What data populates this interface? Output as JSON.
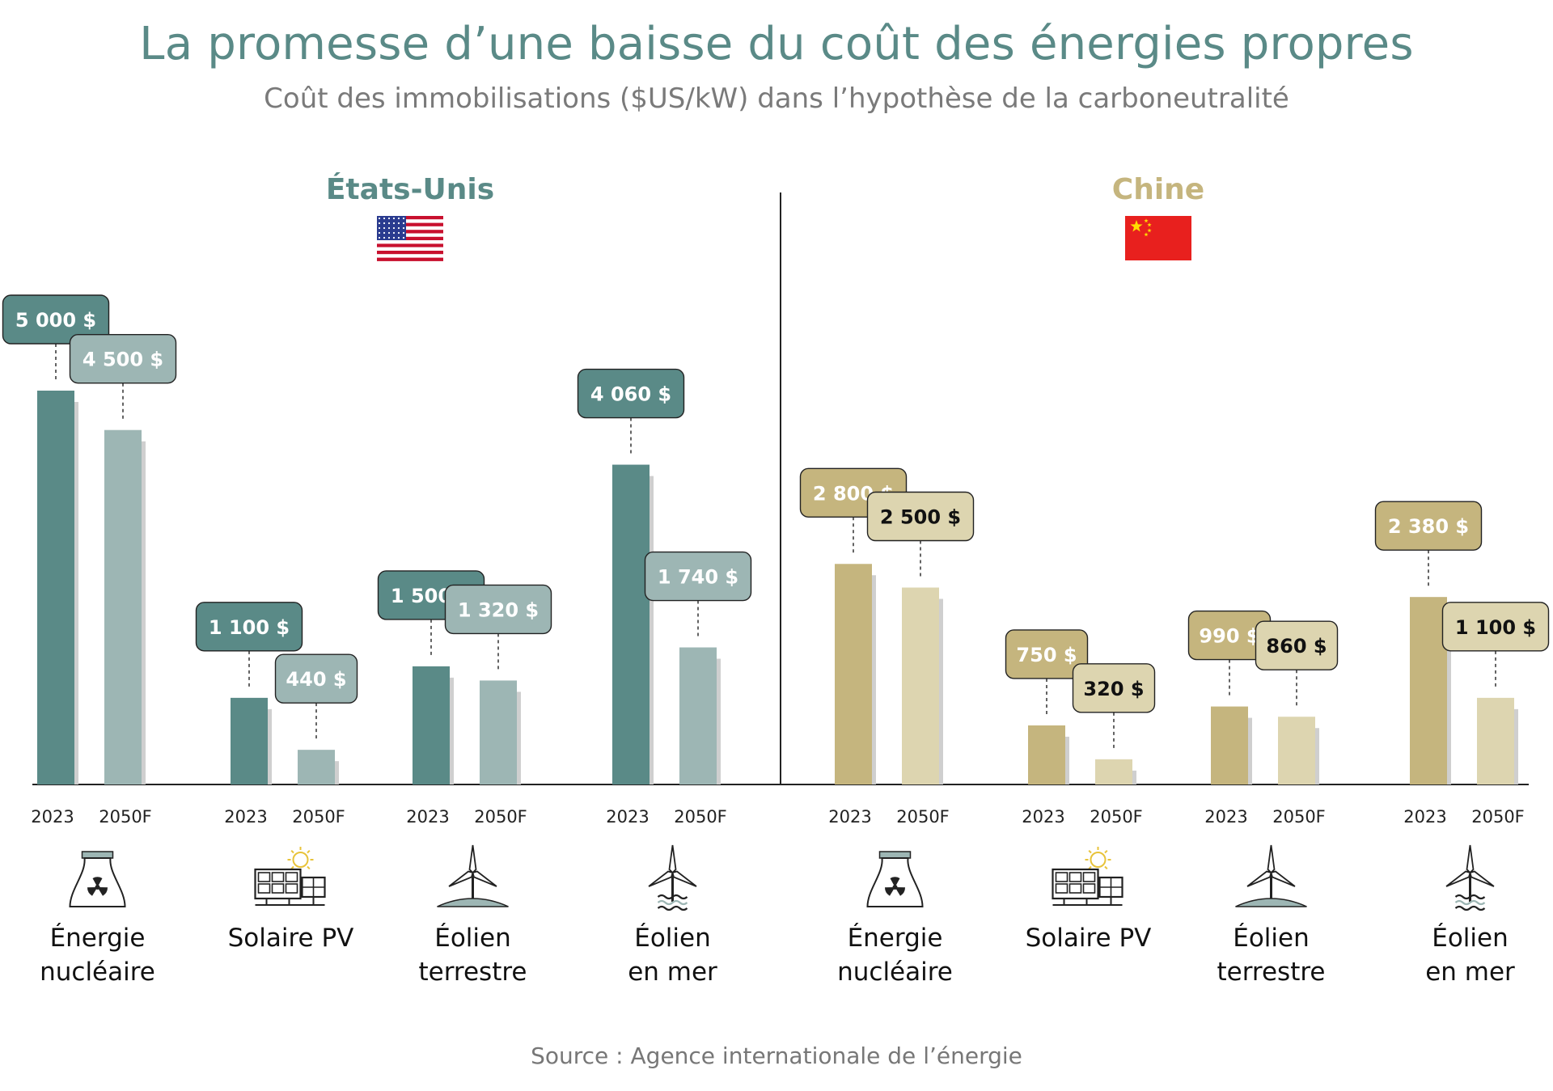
{
  "title": "La promesse d’une baisse du coût des énergies propres",
  "subtitle": "Coût des immobilisations ($US/kW) dans l’hypothèse de la carboneutralité",
  "source": "Source : Agence internationale de l’énergie",
  "colors": {
    "us_2023": "#5a8a87",
    "us_2050": "#9db6b4",
    "cn_2023": "#c5b57e",
    "cn_2050": "#ddd5b0",
    "us_title": "#5a8a87",
    "cn_title": "#c5b57e"
  },
  "chart_data": {
    "type": "bar",
    "unit": "$US/kW",
    "series_labels": [
      "2023",
      "2050F"
    ],
    "groups": [
      {
        "region": "États-Unis",
        "flag_icon": "us-flag-icon",
        "categories": [
          {
            "label_lines": [
              "Énergie",
              "nucléaire"
            ],
            "icon": "nuclear-plant-icon",
            "values": [
              5000,
              4500
            ],
            "labels": [
              "5 000 $",
              "4 500 $"
            ]
          },
          {
            "label_lines": [
              "Solaire PV"
            ],
            "icon": "solar-panel-icon",
            "values": [
              1100,
              440
            ],
            "labels": [
              "1 100 $",
              "440 $"
            ]
          },
          {
            "label_lines": [
              "Éolien",
              "terrestre"
            ],
            "icon": "onshore-wind-icon",
            "values": [
              1500,
              1320
            ],
            "labels": [
              "1 500 $",
              "1 320 $"
            ]
          },
          {
            "label_lines": [
              "Éolien",
              "en mer"
            ],
            "icon": "offshore-wind-icon",
            "values": [
              4060,
              1740
            ],
            "labels": [
              "4 060 $",
              "1 740 $"
            ]
          }
        ]
      },
      {
        "region": "Chine",
        "flag_icon": "china-flag-icon",
        "categories": [
          {
            "label_lines": [
              "Énergie",
              "nucléaire"
            ],
            "icon": "nuclear-plant-icon",
            "values": [
              2800,
              2500
            ],
            "labels": [
              "2 800 $",
              "2 500 $"
            ]
          },
          {
            "label_lines": [
              "Solaire PV"
            ],
            "icon": "solar-panel-icon",
            "values": [
              750,
              320
            ],
            "labels": [
              "750 $",
              "320 $"
            ]
          },
          {
            "label_lines": [
              "Éolien",
              "terrestre"
            ],
            "icon": "onshore-wind-icon",
            "values": [
              990,
              860
            ],
            "labels": [
              "990 $",
              "860 $"
            ]
          },
          {
            "label_lines": [
              "Éolien",
              "en mer"
            ],
            "icon": "offshore-wind-icon",
            "values": [
              2380,
              1100
            ],
            "labels": [
              "2 380 $",
              "1 100 $"
            ]
          }
        ]
      }
    ]
  }
}
